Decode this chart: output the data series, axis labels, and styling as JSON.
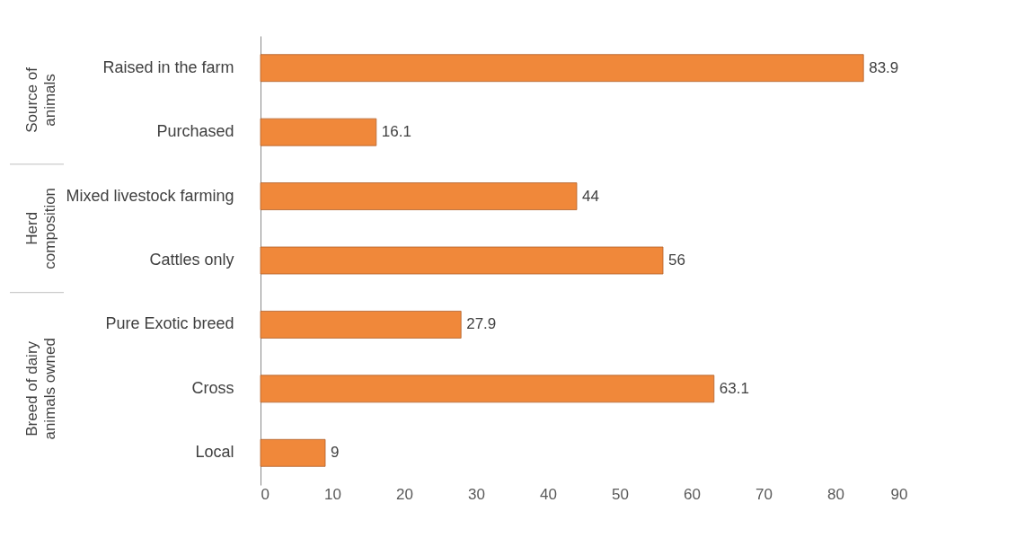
{
  "chart_data": {
    "type": "bar",
    "orientation": "horizontal",
    "categories": [
      "Raised in the farm",
      "Purchased",
      "Mixed livestock farming",
      "Cattles only",
      "Pure Exotic breed",
      "Cross",
      "Local"
    ],
    "values": [
      83.9,
      16.1,
      44,
      56,
      27.9,
      63.1,
      9
    ],
    "color": "#f0883a",
    "xlim": [
      0,
      90
    ],
    "xticks": [
      0,
      10,
      20,
      30,
      40,
      50,
      60,
      70,
      80,
      90
    ],
    "grid": false,
    "data_labels": true,
    "annotations": [
      "Source of animals",
      "Herd composition",
      "Breed of dairy animals owned"
    ]
  }
}
